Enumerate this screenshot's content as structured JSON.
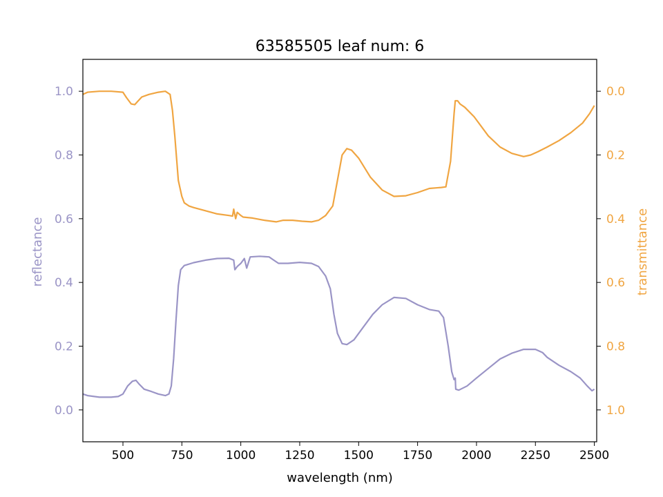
{
  "chart_data": {
    "type": "line",
    "title": "63585505 leaf num: 6",
    "xlabel": "wavelength (nm)",
    "ylabel_left": "reflectance",
    "ylabel_right": "transmittance",
    "xlim": [
      330,
      2510
    ],
    "ylim_left": [
      -0.1,
      1.1
    ],
    "ylim_right": [
      1.1,
      -0.1
    ],
    "right_axis_inverted": true,
    "xticks": [
      500,
      750,
      1000,
      1250,
      1500,
      1750,
      2000,
      2250,
      2500
    ],
    "yticks_left": [
      0.0,
      0.2,
      0.4,
      0.6,
      0.8,
      1.0
    ],
    "yticks_right": [
      0.0,
      0.2,
      0.4,
      0.6,
      0.8,
      1.0
    ],
    "grid": false,
    "colors": {
      "reflectance": "#9a94c6",
      "transmittance": "#f0a541",
      "axis": "#000000"
    },
    "series": [
      {
        "name": "reflectance",
        "axis": "left",
        "points": [
          [
            330,
            0.05
          ],
          [
            350,
            0.045
          ],
          [
            400,
            0.04
          ],
          [
            450,
            0.04
          ],
          [
            480,
            0.042
          ],
          [
            500,
            0.05
          ],
          [
            520,
            0.075
          ],
          [
            540,
            0.09
          ],
          [
            555,
            0.093
          ],
          [
            570,
            0.08
          ],
          [
            590,
            0.065
          ],
          [
            620,
            0.058
          ],
          [
            650,
            0.05
          ],
          [
            680,
            0.045
          ],
          [
            695,
            0.05
          ],
          [
            705,
            0.075
          ],
          [
            715,
            0.16
          ],
          [
            725,
            0.28
          ],
          [
            735,
            0.39
          ],
          [
            745,
            0.44
          ],
          [
            760,
            0.453
          ],
          [
            800,
            0.462
          ],
          [
            850,
            0.47
          ],
          [
            900,
            0.475
          ],
          [
            950,
            0.476
          ],
          [
            970,
            0.47
          ],
          [
            975,
            0.44
          ],
          [
            985,
            0.45
          ],
          [
            1000,
            0.46
          ],
          [
            1015,
            0.475
          ],
          [
            1025,
            0.445
          ],
          [
            1040,
            0.48
          ],
          [
            1080,
            0.482
          ],
          [
            1120,
            0.48
          ],
          [
            1140,
            0.47
          ],
          [
            1160,
            0.46
          ],
          [
            1200,
            0.46
          ],
          [
            1250,
            0.463
          ],
          [
            1300,
            0.46
          ],
          [
            1330,
            0.45
          ],
          [
            1360,
            0.42
          ],
          [
            1380,
            0.38
          ],
          [
            1395,
            0.3
          ],
          [
            1410,
            0.24
          ],
          [
            1430,
            0.208
          ],
          [
            1450,
            0.205
          ],
          [
            1480,
            0.22
          ],
          [
            1520,
            0.26
          ],
          [
            1560,
            0.3
          ],
          [
            1600,
            0.33
          ],
          [
            1650,
            0.353
          ],
          [
            1700,
            0.35
          ],
          [
            1750,
            0.33
          ],
          [
            1800,
            0.315
          ],
          [
            1840,
            0.31
          ],
          [
            1860,
            0.29
          ],
          [
            1880,
            0.2
          ],
          [
            1895,
            0.12
          ],
          [
            1905,
            0.095
          ],
          [
            1910,
            0.1
          ],
          [
            1912,
            0.065
          ],
          [
            1925,
            0.062
          ],
          [
            1960,
            0.075
          ],
          [
            2000,
            0.1
          ],
          [
            2050,
            0.13
          ],
          [
            2100,
            0.16
          ],
          [
            2150,
            0.178
          ],
          [
            2200,
            0.19
          ],
          [
            2250,
            0.19
          ],
          [
            2280,
            0.18
          ],
          [
            2300,
            0.165
          ],
          [
            2350,
            0.14
          ],
          [
            2400,
            0.12
          ],
          [
            2440,
            0.1
          ],
          [
            2470,
            0.075
          ],
          [
            2490,
            0.06
          ],
          [
            2500,
            0.065
          ]
        ]
      },
      {
        "name": "transmittance",
        "axis": "right",
        "points": [
          [
            330,
            0.01
          ],
          [
            350,
            0.003
          ],
          [
            400,
            0.0
          ],
          [
            450,
            0.0
          ],
          [
            500,
            0.003
          ],
          [
            515,
            0.02
          ],
          [
            535,
            0.04
          ],
          [
            550,
            0.042
          ],
          [
            565,
            0.03
          ],
          [
            580,
            0.018
          ],
          [
            610,
            0.01
          ],
          [
            650,
            0.003
          ],
          [
            680,
            0.0
          ],
          [
            700,
            0.01
          ],
          [
            710,
            0.06
          ],
          [
            720,
            0.14
          ],
          [
            735,
            0.28
          ],
          [
            750,
            0.33
          ],
          [
            760,
            0.35
          ],
          [
            780,
            0.36
          ],
          [
            800,
            0.365
          ],
          [
            850,
            0.375
          ],
          [
            900,
            0.385
          ],
          [
            950,
            0.39
          ],
          [
            965,
            0.392
          ],
          [
            970,
            0.37
          ],
          [
            978,
            0.4
          ],
          [
            985,
            0.38
          ],
          [
            1000,
            0.39
          ],
          [
            1010,
            0.395
          ],
          [
            1050,
            0.398
          ],
          [
            1100,
            0.405
          ],
          [
            1150,
            0.41
          ],
          [
            1180,
            0.405
          ],
          [
            1220,
            0.405
          ],
          [
            1260,
            0.408
          ],
          [
            1300,
            0.41
          ],
          [
            1330,
            0.405
          ],
          [
            1360,
            0.39
          ],
          [
            1390,
            0.36
          ],
          [
            1410,
            0.28
          ],
          [
            1430,
            0.2
          ],
          [
            1450,
            0.18
          ],
          [
            1470,
            0.185
          ],
          [
            1500,
            0.21
          ],
          [
            1550,
            0.27
          ],
          [
            1600,
            0.31
          ],
          [
            1650,
            0.33
          ],
          [
            1700,
            0.328
          ],
          [
            1750,
            0.318
          ],
          [
            1800,
            0.305
          ],
          [
            1850,
            0.302
          ],
          [
            1870,
            0.3
          ],
          [
            1890,
            0.22
          ],
          [
            1900,
            0.12
          ],
          [
            1905,
            0.07
          ],
          [
            1910,
            0.03
          ],
          [
            1920,
            0.03
          ],
          [
            1930,
            0.04
          ],
          [
            1950,
            0.05
          ],
          [
            1990,
            0.08
          ],
          [
            2050,
            0.14
          ],
          [
            2100,
            0.175
          ],
          [
            2150,
            0.195
          ],
          [
            2200,
            0.205
          ],
          [
            2230,
            0.2
          ],
          [
            2260,
            0.19
          ],
          [
            2300,
            0.175
          ],
          [
            2350,
            0.155
          ],
          [
            2400,
            0.13
          ],
          [
            2450,
            0.1
          ],
          [
            2480,
            0.07
          ],
          [
            2500,
            0.045
          ]
        ]
      }
    ]
  }
}
